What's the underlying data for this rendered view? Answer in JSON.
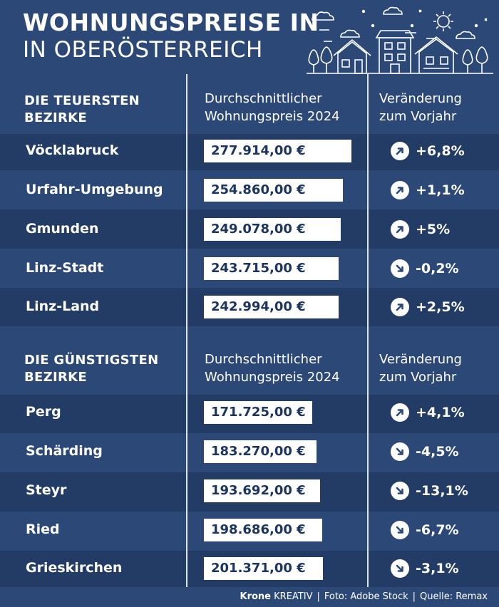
{
  "title": {
    "line1": "WOHNUNGSPREISE IN",
    "line2": "IN OBERÖSTERREICH"
  },
  "colors": {
    "background": "#2b4876",
    "row_dark": "#223c66",
    "box_text": "#1c3560"
  },
  "icons": {
    "skyline": "houses-trees-clouds-sun",
    "up": "arrow-up-right-icon",
    "down": "arrow-down-right-icon"
  },
  "chart_data": [
    {
      "type": "table",
      "title": "DIE TEUERSTEN BEZIRKE",
      "columns": [
        "Durchschnittlicher Wohnungspreis 2024",
        "Veränderung zum Vorjahr"
      ],
      "rows": [
        {
          "district": "Vöcklabruck",
          "price": "277.914,00 €",
          "price_value": 277914.0,
          "change": "+6,8%",
          "direction": "up"
        },
        {
          "district": "Urfahr-Umgebung",
          "price": "254.860,00 €",
          "price_value": 254860.0,
          "change": "+1,1%",
          "direction": "up"
        },
        {
          "district": "Gmunden",
          "price": "249.078,00 €",
          "price_value": 249078.0,
          "change": "+5%",
          "direction": "up"
        },
        {
          "district": "Linz-Stadt",
          "price": "243.715,00 €",
          "price_value": 243715.0,
          "change": "-0,2%",
          "direction": "down"
        },
        {
          "district": "Linz-Land",
          "price": "242.994,00 €",
          "price_value": 242994.0,
          "change": "+2,5%",
          "direction": "up"
        }
      ]
    },
    {
      "type": "table",
      "title": "DIE GÜNSTIGSTEN BEZIRKE",
      "columns": [
        "Durchschnittlicher Wohnungspreis 2024",
        "Veränderung zum Vorjahr"
      ],
      "rows": [
        {
          "district": "Perg",
          "price": "171.725,00 €",
          "price_value": 171725.0,
          "change": "+4,1%",
          "direction": "up"
        },
        {
          "district": "Schärding",
          "price": "183.270,00 €",
          "price_value": 183270.0,
          "change": "-4,5%",
          "direction": "down"
        },
        {
          "district": "Steyr",
          "price": "193.692,00 €",
          "price_value": 193692.0,
          "change": "-13,1%",
          "direction": "down"
        },
        {
          "district": "Ried",
          "price": "198.686,00 €",
          "price_value": 198686.0,
          "change": "-6,7%",
          "direction": "down"
        },
        {
          "district": "Grieskirchen",
          "price": "201.371,00 €",
          "price_value": 201371.0,
          "change": "-3,1%",
          "direction": "down"
        }
      ]
    }
  ],
  "footer": {
    "brand": "Krone",
    "brand_suffix": "KREATIV",
    "photo": "Foto: Adobe Stock",
    "source": "Quelle: Remax",
    "separator": "|"
  }
}
